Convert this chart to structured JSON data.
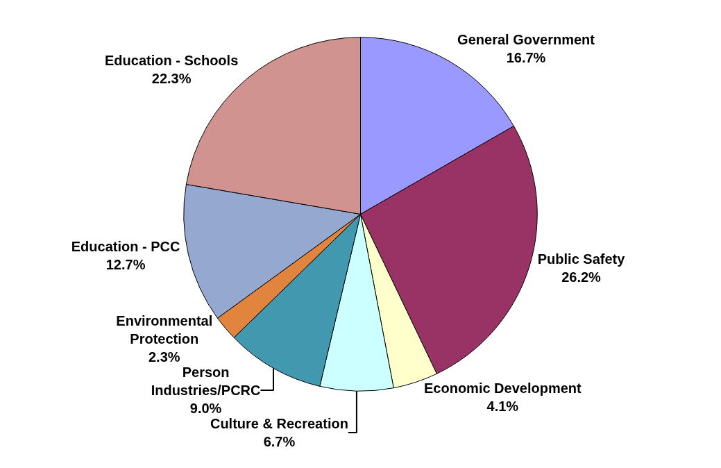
{
  "chart_data": {
    "type": "pie",
    "categories": [
      "General Government",
      "Public Safety",
      "Economic Development",
      "Culture & Recreation",
      "Person Industries/PCRC",
      "Environmental Protection",
      "Education - PCC",
      "Education - Schools"
    ],
    "values": [
      16.7,
      26.2,
      4.1,
      6.7,
      9.0,
      2.3,
      12.7,
      22.3
    ],
    "colors": [
      "#9999ff",
      "#993366",
      "#ffffcc",
      "#ccffff",
      "#4298ae",
      "#e0843e",
      "#95a8d0",
      "#d09390"
    ],
    "value_labels": [
      "16.7%",
      "26.2%",
      "4.1%",
      "6.7%",
      "9.0%",
      "2.3%",
      "12.7%",
      "22.3%"
    ],
    "legend": false
  }
}
